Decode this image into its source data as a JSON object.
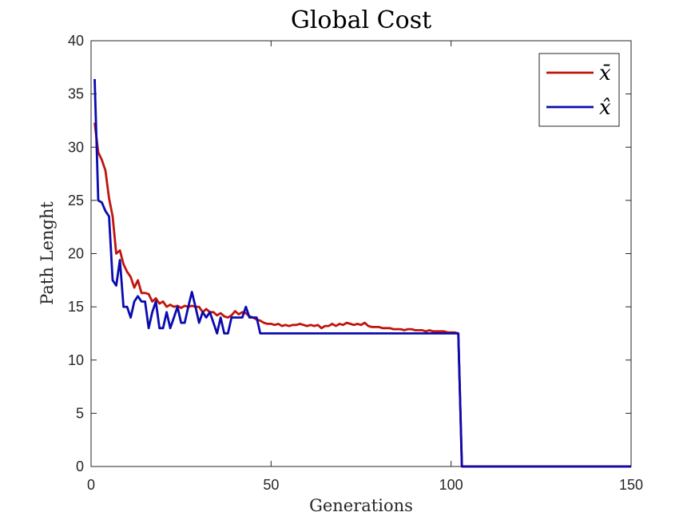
{
  "chart_data": {
    "type": "line",
    "title": "Global Cost",
    "xlabel": "Generations",
    "ylabel": "Path Lenght",
    "xlim": [
      0,
      150
    ],
    "ylim": [
      0,
      40
    ],
    "xticks": [
      0,
      50,
      100,
      150
    ],
    "yticks": [
      0,
      5,
      10,
      15,
      20,
      25,
      30,
      35,
      40
    ],
    "grid": false,
    "legend_position": "top-right",
    "series": [
      {
        "name": "x̄",
        "color": "#C0140C",
        "points": [
          [
            1,
            32.3
          ],
          [
            2,
            29.5
          ],
          [
            3,
            28.8
          ],
          [
            4,
            27.8
          ],
          [
            5,
            25.2
          ],
          [
            6,
            23.5
          ],
          [
            7,
            20
          ],
          [
            8,
            20.3
          ],
          [
            9,
            19
          ],
          [
            10,
            18.3
          ],
          [
            11,
            17.8
          ],
          [
            12,
            16.8
          ],
          [
            13,
            17.5
          ],
          [
            14,
            16.3
          ],
          [
            15,
            16.3
          ],
          [
            16,
            16.2
          ],
          [
            17,
            15.5
          ],
          [
            18,
            15.8
          ],
          [
            19,
            15.3
          ],
          [
            20,
            15.5
          ],
          [
            21,
            15
          ],
          [
            22,
            15.2
          ],
          [
            23,
            15
          ],
          [
            24,
            15.1
          ],
          [
            25,
            14.9
          ],
          [
            26,
            15.1
          ],
          [
            27,
            15
          ],
          [
            28,
            15.1
          ],
          [
            29,
            15
          ],
          [
            30,
            15
          ],
          [
            31,
            14.5
          ],
          [
            32,
            14.8
          ],
          [
            33,
            14.5
          ],
          [
            34,
            14.5
          ],
          [
            35,
            14.2
          ],
          [
            36,
            14.4
          ],
          [
            37,
            14.1
          ],
          [
            38,
            14
          ],
          [
            39,
            14.2
          ],
          [
            40,
            14.6
          ],
          [
            41,
            14.3
          ],
          [
            42,
            14.5
          ],
          [
            43,
            14.4
          ],
          [
            44,
            14.1
          ],
          [
            45,
            14
          ],
          [
            46,
            13.8
          ],
          [
            47,
            13.7
          ],
          [
            48,
            13.5
          ],
          [
            49,
            13.4
          ],
          [
            50,
            13.4
          ],
          [
            51,
            13.3
          ],
          [
            52,
            13.4
          ],
          [
            53,
            13.2
          ],
          [
            54,
            13.3
          ],
          [
            55,
            13.2
          ],
          [
            56,
            13.3
          ],
          [
            57,
            13.3
          ],
          [
            58,
            13.4
          ],
          [
            59,
            13.3
          ],
          [
            60,
            13.2
          ],
          [
            61,
            13.3
          ],
          [
            62,
            13.2
          ],
          [
            63,
            13.3
          ],
          [
            64,
            13
          ],
          [
            65,
            13.2
          ],
          [
            66,
            13.2
          ],
          [
            67,
            13.4
          ],
          [
            68,
            13.2
          ],
          [
            69,
            13.4
          ],
          [
            70,
            13.3
          ],
          [
            71,
            13.5
          ],
          [
            72,
            13.4
          ],
          [
            73,
            13.3
          ],
          [
            74,
            13.4
          ],
          [
            75,
            13.3
          ],
          [
            76,
            13.5
          ],
          [
            77,
            13.2
          ],
          [
            78,
            13.1
          ],
          [
            79,
            13.1
          ],
          [
            80,
            13.1
          ],
          [
            81,
            13
          ],
          [
            82,
            13
          ],
          [
            83,
            13
          ],
          [
            84,
            12.9
          ],
          [
            85,
            12.9
          ],
          [
            86,
            12.9
          ],
          [
            87,
            12.8
          ],
          [
            88,
            12.9
          ],
          [
            89,
            12.9
          ],
          [
            90,
            12.8
          ],
          [
            91,
            12.8
          ],
          [
            92,
            12.8
          ],
          [
            93,
            12.7
          ],
          [
            94,
            12.8
          ],
          [
            95,
            12.7
          ],
          [
            96,
            12.7
          ],
          [
            97,
            12.7
          ],
          [
            98,
            12.7
          ],
          [
            99,
            12.6
          ],
          [
            100,
            12.6
          ],
          [
            101,
            12.6
          ],
          [
            102,
            12.5
          ],
          [
            103,
            0
          ],
          [
            150,
            0
          ]
        ]
      },
      {
        "name": "x̂",
        "color": "#0A0AAF",
        "points": [
          [
            1,
            36.4
          ],
          [
            2,
            25
          ],
          [
            3,
            24.8
          ],
          [
            4,
            24
          ],
          [
            5,
            23.5
          ],
          [
            6,
            17.5
          ],
          [
            7,
            17
          ],
          [
            8,
            19.4
          ],
          [
            9,
            15
          ],
          [
            10,
            15
          ],
          [
            11,
            14
          ],
          [
            12,
            15.5
          ],
          [
            13,
            16
          ],
          [
            14,
            15.5
          ],
          [
            15,
            15.5
          ],
          [
            16,
            13
          ],
          [
            17,
            14.5
          ],
          [
            18,
            15.5
          ],
          [
            19,
            13
          ],
          [
            20,
            13
          ],
          [
            21,
            14.5
          ],
          [
            22,
            13
          ],
          [
            23,
            14
          ],
          [
            24,
            15
          ],
          [
            25,
            13.5
          ],
          [
            26,
            13.5
          ],
          [
            27,
            15
          ],
          [
            28,
            16.4
          ],
          [
            29,
            15
          ],
          [
            30,
            13.5
          ],
          [
            31,
            14.5
          ],
          [
            32,
            14
          ],
          [
            33,
            14.5
          ],
          [
            34,
            13.5
          ],
          [
            35,
            12.5
          ],
          [
            36,
            14
          ],
          [
            37,
            12.5
          ],
          [
            38,
            12.5
          ],
          [
            39,
            14
          ],
          [
            40,
            14
          ],
          [
            41,
            14
          ],
          [
            42,
            14
          ],
          [
            43,
            15
          ],
          [
            44,
            14
          ],
          [
            45,
            14
          ],
          [
            46,
            14
          ],
          [
            47,
            12.5
          ],
          [
            48,
            12.5
          ],
          [
            101,
            12.5
          ],
          [
            102,
            12.5
          ],
          [
            103,
            0
          ],
          [
            150,
            0
          ]
        ]
      }
    ]
  }
}
